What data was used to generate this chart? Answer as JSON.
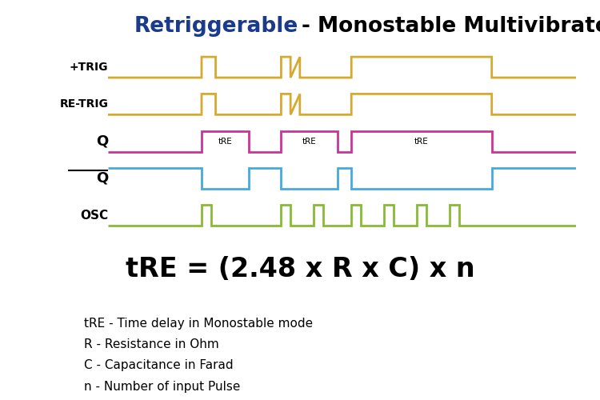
{
  "title_part1": "Retriggerable",
  "title_part2": "- Monostable Multivibrator",
  "title_color1": "#1a3a8a",
  "title_color2": "#000000",
  "title_fontsize": 19,
  "bg_color": "#ffffff",
  "signal_color_yellow": "#d4aa30",
  "signal_color_magenta": "#cc3399",
  "signal_color_cyan": "#44aadd",
  "signal_color_green": "#88bb33",
  "signal_linewidth": 2.0,
  "formula": "tRE = (2.48 x R x C) x n",
  "formula_fontsize": 24,
  "notes": [
    "tRE - Time delay in Monostable mode",
    "R - Resistance in Ohm",
    "C - Capacitance in Farad",
    "n - Number of input Pulse"
  ],
  "notes_fontsize": 11
}
